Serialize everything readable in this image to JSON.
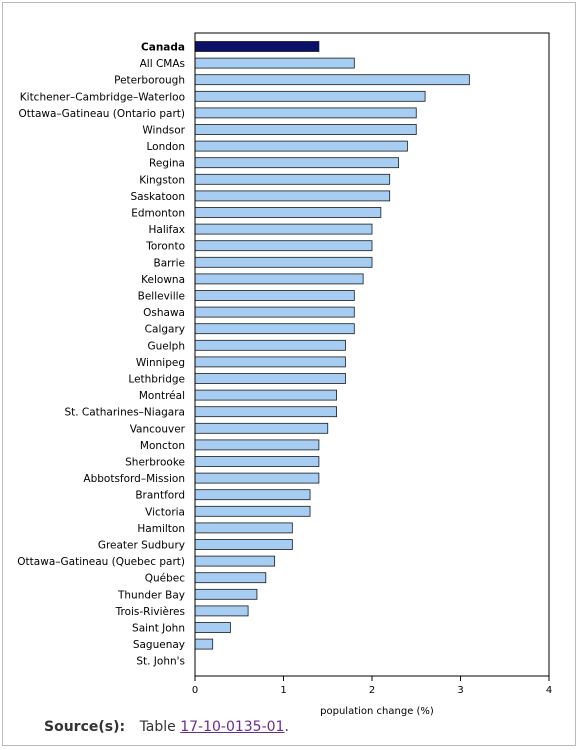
{
  "chart_data": {
    "type": "bar",
    "orientation": "horizontal",
    "xlabel": "population change (%)",
    "xlim": [
      0,
      4
    ],
    "xticks": [
      0,
      1,
      2,
      3,
      4
    ],
    "grid": false,
    "highlight_category": "Canada",
    "colors": {
      "bar": "#a7cdf2",
      "highlight_bar": "#0b1168",
      "bar_stroke": "#1a1a1a"
    },
    "categories": [
      "Canada",
      "All CMAs",
      "Peterborough",
      "Kitchener–Cambridge–Waterloo",
      "Ottawa–Gatineau (Ontario part)",
      "Windsor",
      "London",
      "Regina",
      "Kingston",
      "Saskatoon",
      "Edmonton",
      "Halifax",
      "Toronto",
      "Barrie",
      "Kelowna",
      "Belleville",
      "Oshawa",
      "Calgary",
      "Guelph",
      "Winnipeg",
      "Lethbridge",
      "Montréal",
      "St. Catharines–Niagara",
      "Vancouver",
      "Moncton",
      "Sherbrooke",
      "Abbotsford–Mission",
      "Brantford",
      "Victoria",
      "Hamilton",
      "Greater Sudbury",
      "Ottawa–Gatineau (Quebec part)",
      "Québec",
      "Thunder Bay",
      "Trois-Rivières",
      "Saint John",
      "Saguenay",
      "St. John's"
    ],
    "values": [
      1.4,
      1.8,
      3.1,
      2.6,
      2.5,
      2.5,
      2.4,
      2.3,
      2.2,
      2.2,
      2.1,
      2.0,
      2.0,
      2.0,
      1.9,
      1.8,
      1.8,
      1.8,
      1.7,
      1.7,
      1.7,
      1.6,
      1.6,
      1.5,
      1.4,
      1.4,
      1.4,
      1.3,
      1.3,
      1.1,
      1.1,
      0.9,
      0.8,
      0.7,
      0.6,
      0.4,
      0.2,
      0.0
    ]
  },
  "source": {
    "label": "Source(s):",
    "text": "Table",
    "link_text": "17-10-0135-01",
    "suffix": "."
  }
}
